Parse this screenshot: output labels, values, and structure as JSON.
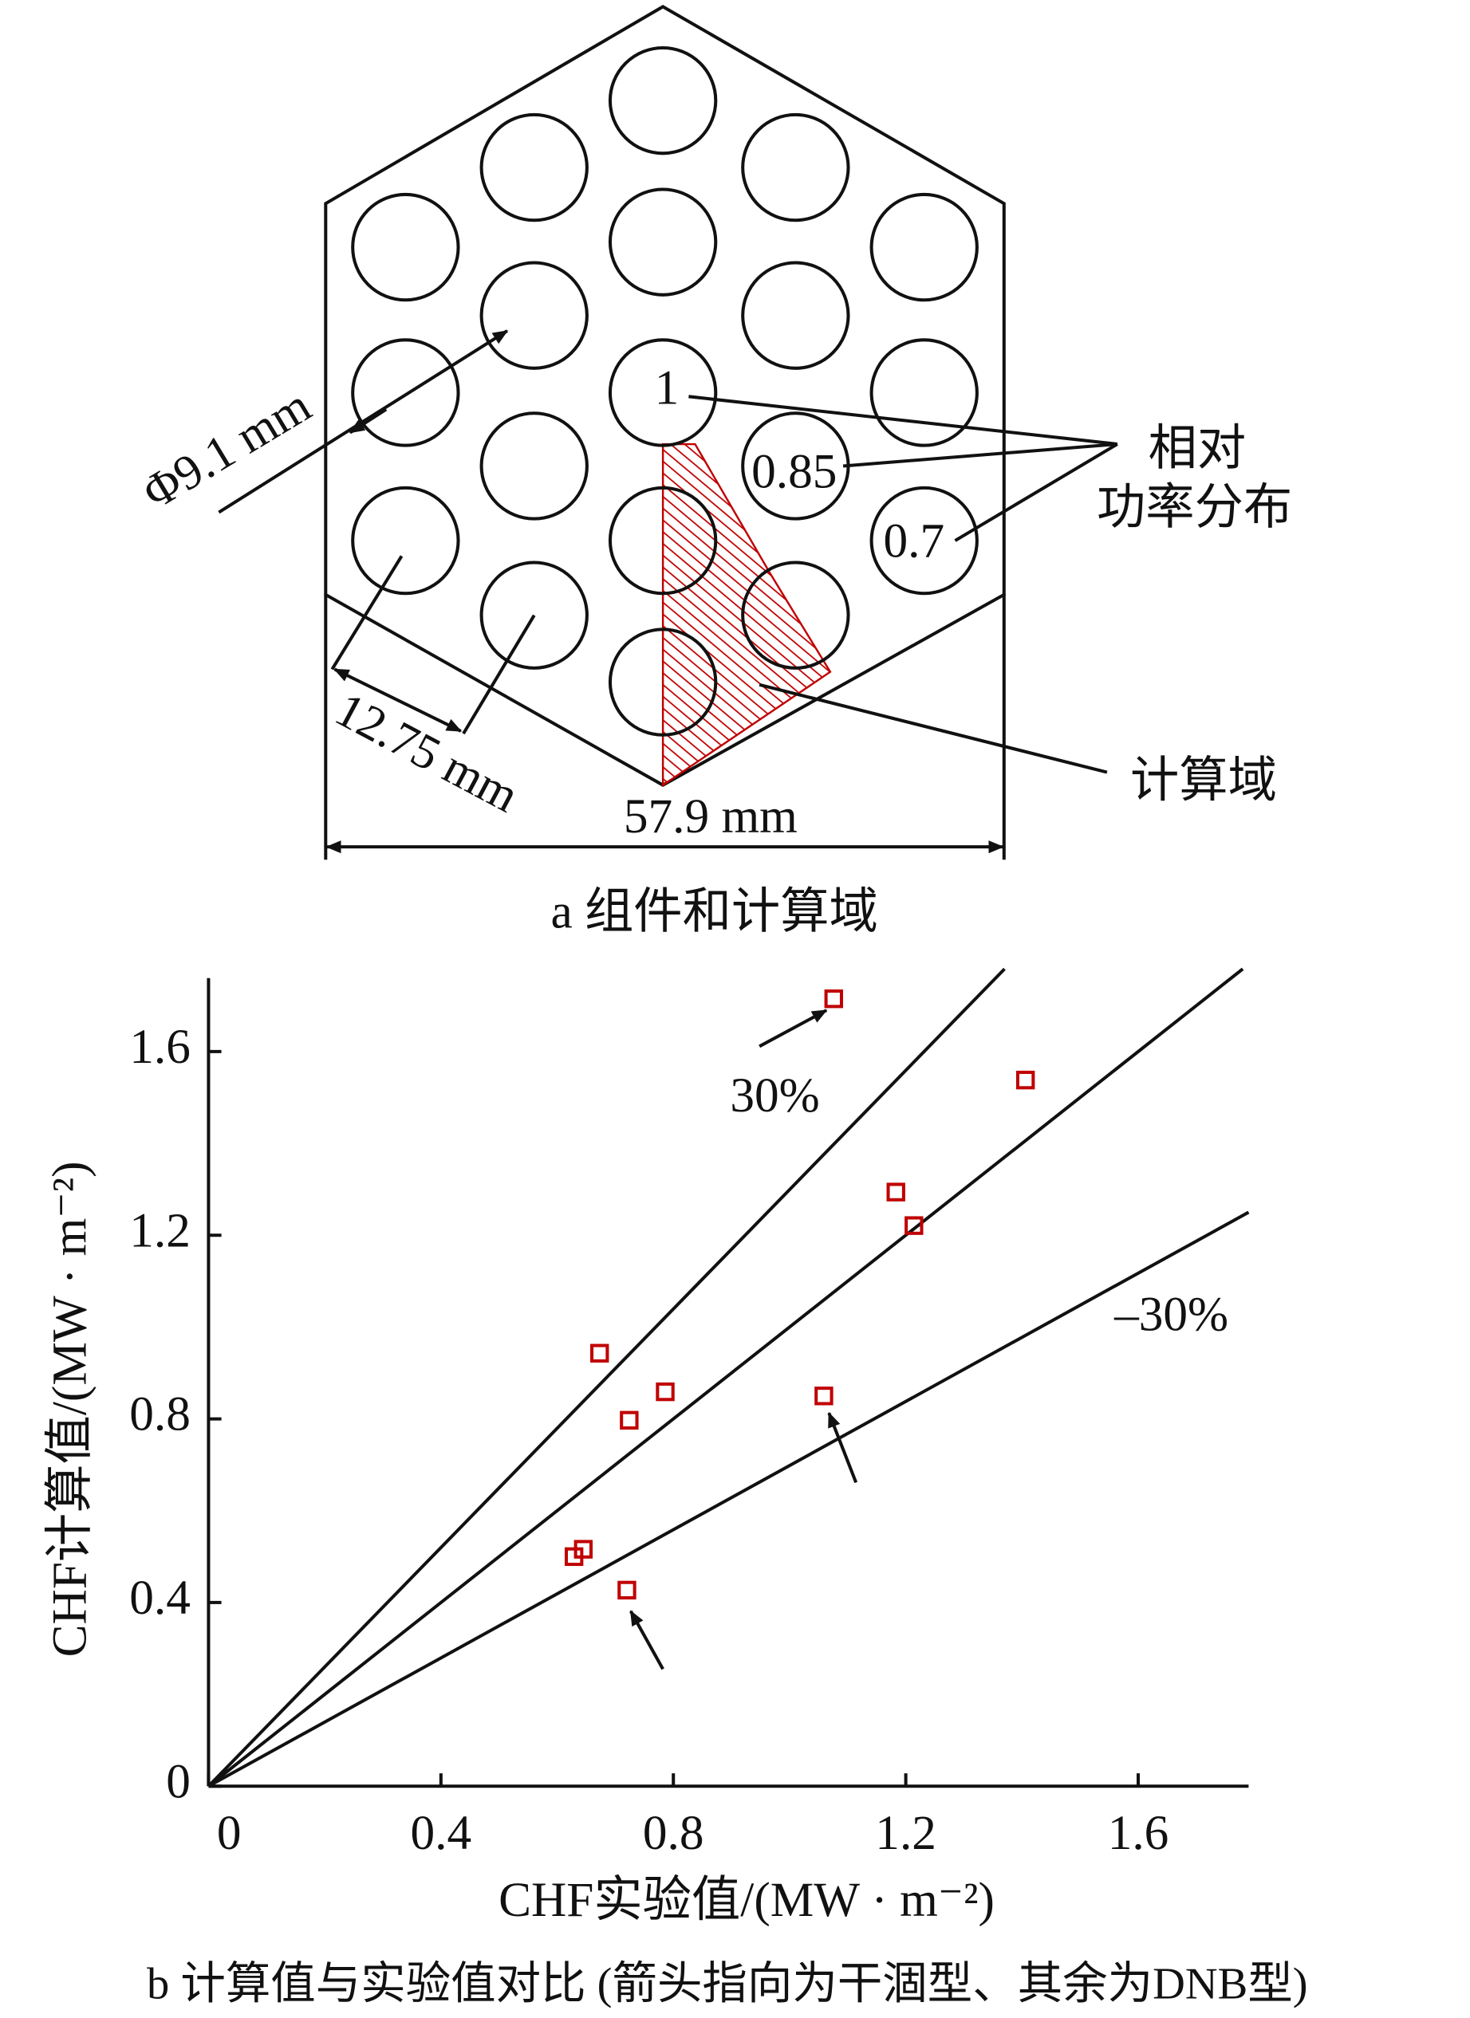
{
  "diagram": {
    "rod_diameter": "Φ9.1 mm",
    "pitch": "12.75 mm",
    "width": "57.9 mm",
    "relative_power_labels": [
      "1",
      "0.85",
      "0.7"
    ],
    "power_legend": [
      "相对",
      "功率分布"
    ],
    "domain_label": "计算域",
    "caption": "a 组件和计算域"
  },
  "chart_data": {
    "type": "scatter",
    "x_label": "CHF实验值/(MW · m⁻²)",
    "y_label": "CHF计算值/(MW · m⁻²)",
    "caption": "b 计算值与实验值对比 (箭头指向为干涸型、其余为DNB型)",
    "xlim": [
      0,
      1.79
    ],
    "ylim": [
      0,
      1.76
    ],
    "xticks": [
      0,
      0.4,
      0.8,
      1.2,
      1.6
    ],
    "yticks": [
      0,
      0.4,
      0.8,
      1.2,
      1.6
    ],
    "color": "#c00000",
    "x": [
      1.076,
      1.406,
      1.183,
      1.214,
      0.673,
      0.786,
      0.724,
      1.059,
      0.629,
      0.645,
      0.72
    ],
    "values": [
      1.715,
      1.538,
      1.294,
      1.221,
      0.943,
      0.859,
      0.797,
      0.85,
      0.5,
      0.516,
      0.427
    ],
    "reference_lines": [
      {
        "label": "30%",
        "x": [
          0,
          1.37
        ],
        "y": [
          0,
          1.78
        ]
      },
      {
        "x": [
          0,
          1.78
        ],
        "y": [
          0,
          1.78
        ]
      },
      {
        "label": "–30%",
        "x": [
          0,
          1.79
        ],
        "y": [
          0,
          1.25
        ]
      }
    ]
  }
}
